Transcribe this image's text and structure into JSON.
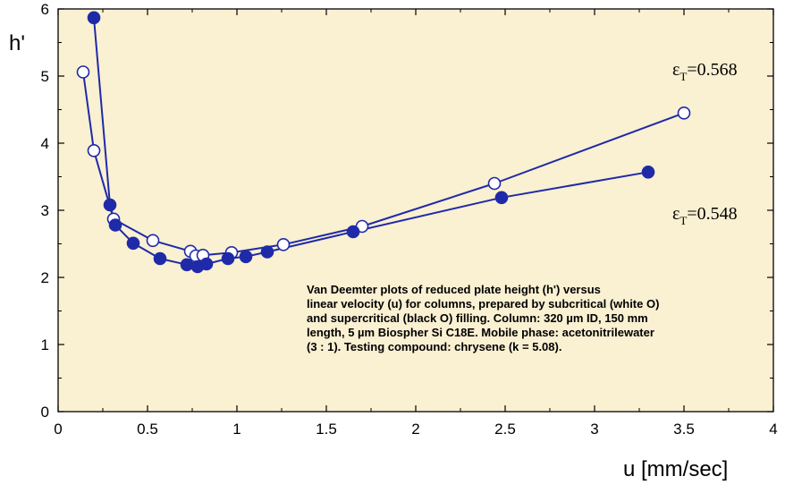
{
  "chart_data": {
    "type": "scatter",
    "xlabel": "u [mm/sec]",
    "ylabel": "h'",
    "xlim": [
      0,
      4
    ],
    "ylim": [
      0,
      6
    ],
    "x_ticks": [
      "0",
      "0.5",
      "1",
      "1.5",
      "2",
      "2.5",
      "3",
      "3.5",
      "4"
    ],
    "y_ticks": [
      "0",
      "1",
      "2",
      "3",
      "4",
      "5",
      "6"
    ],
    "grid": false,
    "colors": {
      "plot_background": "#faf0d2",
      "line": "#1f2aa8",
      "marker_filled": "#1f2aa8",
      "marker_open": "#ffffff"
    },
    "series": [
      {
        "marker": "open-circle",
        "annotation": [
          "ε",
          "T",
          "=0.568"
        ],
        "x": [
          0.14,
          0.2,
          0.31,
          0.53,
          0.74,
          0.77,
          0.81,
          0.97,
          1.26,
          1.7,
          2.44,
          3.5
        ],
        "y": [
          5.06,
          3.89,
          2.87,
          2.55,
          2.39,
          2.32,
          2.33,
          2.37,
          2.49,
          2.76,
          3.4,
          4.45
        ]
      },
      {
        "marker": "filled-circle",
        "annotation": [
          "ε",
          "T",
          "=0.548"
        ],
        "x": [
          0.2,
          0.29,
          0.32,
          0.42,
          0.57,
          0.72,
          0.78,
          0.83,
          0.95,
          1.05,
          1.17,
          1.65,
          2.48,
          3.3
        ],
        "y": [
          5.87,
          3.08,
          2.78,
          2.51,
          2.28,
          2.19,
          2.16,
          2.2,
          2.28,
          2.31,
          2.38,
          2.68,
          3.19,
          3.57
        ]
      }
    ]
  },
  "caption": [
    "Van Deemter plots of reduced plate height (h') versus",
    "linear velocity (u) for columns, prepared by subcritical (white O)",
    "and supercritical (black O) filling. Column: 320 µm ID, 150 mm",
    "length, 5 µm Biospher Si C18E. Mobile phase: acetonitrilewater",
    "(3 : 1). Testing compound: chrysene (k = 5.08)."
  ]
}
